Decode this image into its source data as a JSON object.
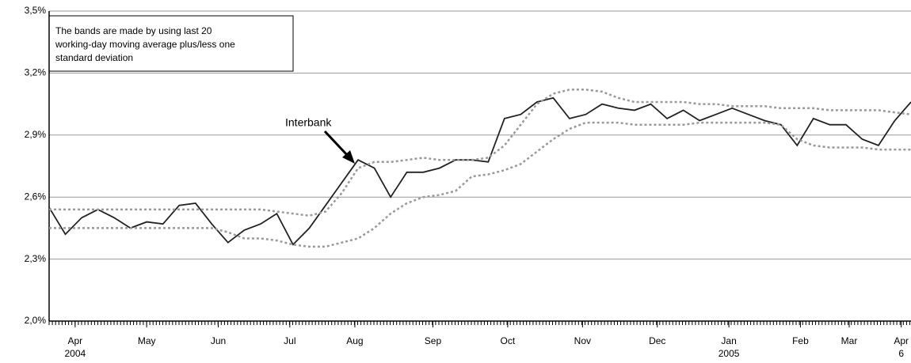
{
  "chart_data": {
    "type": "line",
    "annotation": "Interbank",
    "note": [
      "The bands are made by using last 20",
      "working-day moving average plus/less one",
      "standard deviation"
    ],
    "x": [
      0,
      5,
      10,
      15,
      20,
      25,
      30,
      35,
      40,
      45,
      50,
      55,
      60,
      65,
      70,
      75,
      80,
      85,
      90,
      95,
      100,
      105,
      110,
      115,
      120,
      125,
      130,
      135,
      140,
      145,
      150,
      155,
      160,
      165,
      170,
      175,
      180,
      185,
      190,
      195,
      200,
      205,
      210,
      215,
      220,
      225,
      230,
      235,
      240,
      245,
      250,
      255,
      260,
      265
    ],
    "series": [
      {
        "name": "Interbank",
        "color": "#222222",
        "dash": false,
        "values": [
          2.55,
          2.42,
          2.5,
          2.54,
          2.5,
          2.45,
          2.48,
          2.47,
          2.56,
          2.57,
          2.47,
          2.38,
          2.44,
          2.47,
          2.52,
          2.37,
          2.45,
          2.56,
          2.67,
          2.78,
          2.74,
          2.6,
          2.72,
          2.72,
          2.74,
          2.78,
          2.78,
          2.77,
          2.98,
          3.0,
          3.06,
          3.08,
          2.98,
          3.0,
          3.05,
          3.03,
          3.02,
          3.05,
          2.98,
          3.02,
          2.97,
          3.0,
          3.03,
          3.0,
          2.97,
          2.95,
          2.85,
          2.98,
          2.95,
          2.95,
          2.88,
          2.85,
          2.97,
          3.06
        ]
      },
      {
        "color": "#999999",
        "dash": true,
        "values": [
          2.54,
          2.54,
          2.54,
          2.54,
          2.54,
          2.54,
          2.54,
          2.54,
          2.54,
          2.54,
          2.54,
          2.54,
          2.54,
          2.54,
          2.53,
          2.52,
          2.51,
          2.53,
          2.62,
          2.74,
          2.77,
          2.77,
          2.78,
          2.79,
          2.78,
          2.78,
          2.78,
          2.79,
          2.85,
          2.95,
          3.05,
          3.1,
          3.12,
          3.12,
          3.11,
          3.08,
          3.06,
          3.06,
          3.06,
          3.06,
          3.05,
          3.05,
          3.04,
          3.04,
          3.04,
          3.03,
          3.03,
          3.03,
          3.02,
          3.02,
          3.02,
          3.02,
          3.01,
          3.0
        ]
      },
      {
        "color": "#999999",
        "dash": true,
        "values": [
          2.45,
          2.45,
          2.45,
          2.45,
          2.45,
          2.45,
          2.45,
          2.45,
          2.45,
          2.45,
          2.45,
          2.43,
          2.4,
          2.4,
          2.39,
          2.37,
          2.36,
          2.36,
          2.38,
          2.4,
          2.45,
          2.52,
          2.57,
          2.6,
          2.61,
          2.63,
          2.7,
          2.71,
          2.73,
          2.76,
          2.82,
          2.88,
          2.93,
          2.96,
          2.96,
          2.96,
          2.95,
          2.95,
          2.95,
          2.95,
          2.96,
          2.96,
          2.96,
          2.96,
          2.96,
          2.95,
          2.88,
          2.85,
          2.84,
          2.84,
          2.84,
          2.83,
          2.83,
          2.83
        ]
      }
    ],
    "xlim": [
      0,
      265
    ],
    "xticks": [
      {
        "value": 8,
        "label": "Apr"
      },
      {
        "value": 30,
        "label": "May"
      },
      {
        "value": 52,
        "label": "Jun"
      },
      {
        "value": 74,
        "label": "Jul"
      },
      {
        "value": 94,
        "label": "Aug"
      },
      {
        "value": 118,
        "label": "Sep"
      },
      {
        "value": 141,
        "label": "Oct"
      },
      {
        "value": 164,
        "label": "Nov"
      },
      {
        "value": 187,
        "label": "Dec"
      },
      {
        "value": 209,
        "label": "Jan"
      },
      {
        "value": 231,
        "label": "Feb"
      },
      {
        "value": 246,
        "label": "Mar"
      },
      {
        "value": 262,
        "label": "Apr"
      }
    ],
    "year_labels": [
      {
        "value": 8,
        "label": "2004"
      },
      {
        "value": 209,
        "label": "2005"
      },
      {
        "value": 262,
        "label": "6"
      }
    ],
    "ylim": [
      2.0,
      3.5
    ],
    "yticks": [
      {
        "value": 2.0,
        "label": "2,0%"
      },
      {
        "value": 2.3,
        "label": "2,3%"
      },
      {
        "value": 2.6,
        "label": "2,6%"
      },
      {
        "value": 2.9,
        "label": "2,9%"
      },
      {
        "value": 3.2,
        "label": "3,2%"
      },
      {
        "value": 3.5,
        "label": "3,5%"
      }
    ],
    "grid": true
  }
}
